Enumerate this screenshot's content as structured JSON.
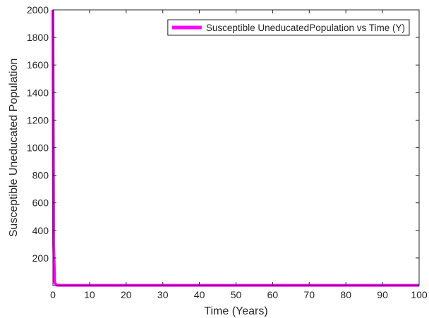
{
  "chart_data": {
    "type": "line",
    "title": "",
    "xlabel": "Time (Years)",
    "ylabel": "Susceptible Uneducated Population",
    "xlim": [
      0,
      100
    ],
    "ylim": [
      0,
      2000
    ],
    "x_ticks": [
      0,
      10,
      20,
      30,
      40,
      50,
      60,
      70,
      80,
      90,
      100
    ],
    "y_ticks": [
      200,
      400,
      600,
      800,
      1000,
      1200,
      1400,
      1600,
      1800,
      2000
    ],
    "grid": false,
    "legend_position": "top-right",
    "series": [
      {
        "name": "Susceptible UneducatedPopulation vs Time (Y)",
        "color": "#ff00ff",
        "x": [
          0,
          0.2,
          0.5,
          1,
          2,
          5,
          10,
          20,
          30,
          40,
          50,
          60,
          70,
          80,
          90,
          100
        ],
        "y": [
          2000,
          300,
          20,
          3,
          2,
          2,
          2,
          2,
          2,
          2,
          2,
          2,
          2,
          2,
          2,
          2
        ]
      }
    ]
  }
}
